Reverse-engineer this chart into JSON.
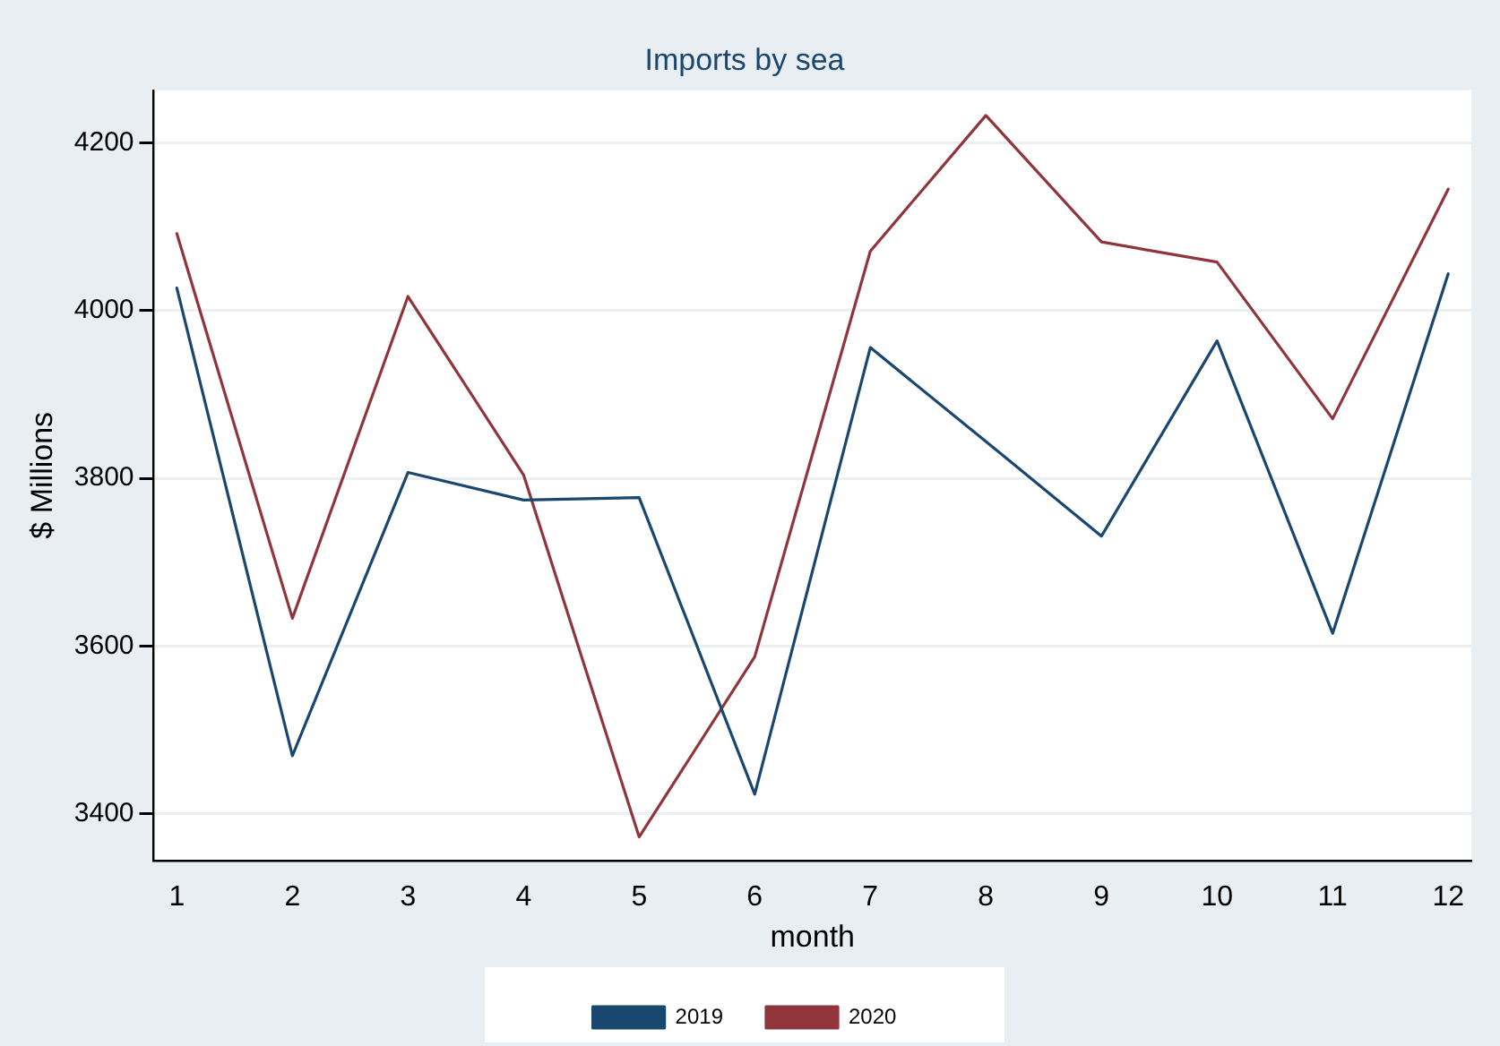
{
  "chart_data": {
    "type": "line",
    "title": "Imports by sea",
    "xlabel": "month",
    "ylabel": "$ Millions",
    "x": [
      1,
      2,
      3,
      4,
      5,
      6,
      7,
      8,
      9,
      10,
      11,
      12
    ],
    "series": [
      {
        "name": "2019",
        "color": "#1a476f",
        "values": [
          4027,
          3469,
          3807,
          3774,
          3777,
          3423,
          3956,
          3844,
          3731,
          3964,
          3615,
          4044
        ]
      },
      {
        "name": "2020",
        "color": "#90353b",
        "values": [
          4092,
          3633,
          4017,
          3804,
          3372,
          3587,
          4071,
          4233,
          4082,
          4058,
          3871,
          4145
        ]
      }
    ],
    "xlim": [
      0.8,
      12.2
    ],
    "xticks": [
      1,
      2,
      3,
      4,
      5,
      6,
      7,
      8,
      9,
      10,
      11,
      12
    ],
    "ylim": [
      3344,
      4263
    ],
    "yticks": [
      3400,
      3600,
      3800,
      4000,
      4200
    ],
    "grid": "y",
    "legend": "bottom",
    "marker": "none",
    "line_style": "solid"
  }
}
